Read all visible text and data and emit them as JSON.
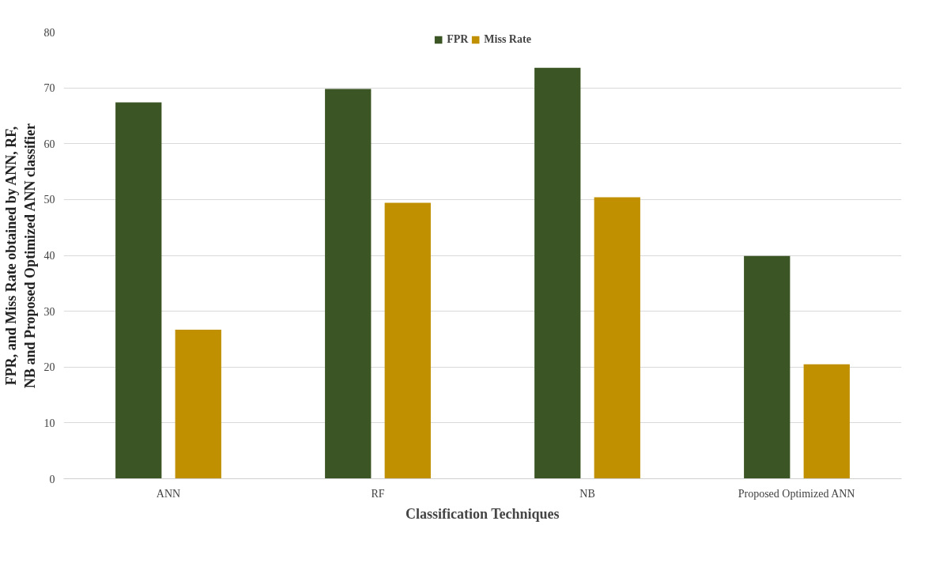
{
  "chart_data": {
    "type": "bar",
    "xlabel": "Classification Techniques",
    "ylabel": "FPR, and Miss Rate obtained by ANN, RF, NB and Proposed Optimized ANN classifier",
    "categories": [
      "ANN",
      "RF",
      "NB",
      "Proposed Optimized ANN"
    ],
    "series": [
      {
        "name": "FPR",
        "color": "#3b5524",
        "values": [
          67.4,
          69.8,
          73.6,
          39.9
        ]
      },
      {
        "name": "Miss Rate",
        "color": "#c09000",
        "values": [
          26.7,
          49.4,
          50.4,
          20.5
        ]
      }
    ],
    "ylim": [
      0,
      80
    ],
    "yticks": [
      0,
      10,
      20,
      30,
      40,
      50,
      60,
      70,
      80
    ],
    "grid": "y",
    "legend": "top"
  }
}
